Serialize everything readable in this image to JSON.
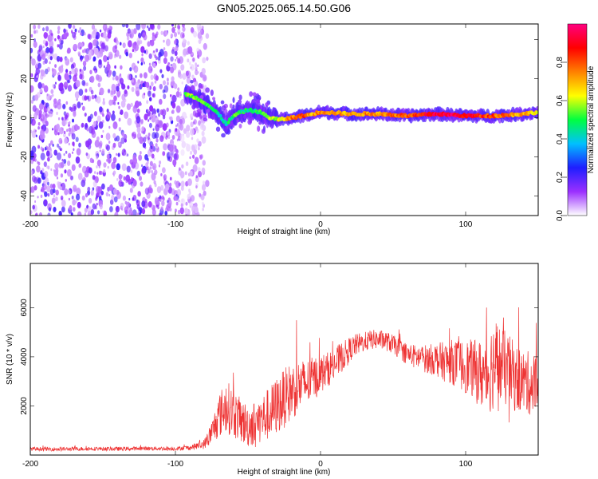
{
  "figure_title": "GN05.2025.065.14.50.G06",
  "chart_data": [
    {
      "type": "heatmap",
      "xlabel": "Height of straight line (km)",
      "ylabel": "Frequency (Hz)",
      "xlim": [
        -200,
        150
      ],
      "ylim": [
        -50,
        48
      ],
      "xticks": [
        -200,
        -100,
        0,
        100
      ],
      "yticks": [
        -40,
        -20,
        0,
        20,
        40
      ],
      "colorbar": {
        "label": "Normalized spectral amplitude",
        "range": [
          0.0,
          1.0
        ],
        "ticks": [
          "0.0",
          "0.2",
          "0.4",
          "0.6",
          "0.8"
        ],
        "colors": [
          "#ffffff",
          "#9b30ff",
          "#1e1eff",
          "#00c0ff",
          "#00ff40",
          "#ffff00",
          "#ff8000",
          "#ff0000",
          "#ff0080"
        ]
      },
      "noise_region_x": [
        -200,
        -82
      ],
      "ridge": {
        "x": [
          -93,
          -88,
          -80,
          -72,
          -65,
          -58,
          -50,
          -42,
          -35,
          -28,
          -20,
          -12,
          -5,
          0,
          20,
          40,
          60,
          80,
          100,
          120,
          140,
          150
        ],
        "freq": [
          12,
          11,
          8,
          3,
          -3,
          2,
          4,
          3,
          0,
          -1,
          0,
          1,
          2,
          3,
          2,
          2,
          1,
          2,
          1,
          1,
          2,
          3
        ],
        "amplitude": [
          0.5,
          0.55,
          0.5,
          0.45,
          0.45,
          0.5,
          0.45,
          0.5,
          0.55,
          0.6,
          0.75,
          0.8,
          0.7,
          0.75,
          0.7,
          0.75,
          0.8,
          0.95,
          0.9,
          0.8,
          0.7,
          0.6
        ]
      }
    },
    {
      "type": "line",
      "xlabel": "Height of straight line (km)",
      "ylabel": "SNR (10 * v/v)",
      "xlim": [
        -200,
        150
      ],
      "ylim": [
        0,
        7800
      ],
      "xticks": [
        -200,
        -100,
        0,
        100
      ],
      "yticks": [
        2000,
        4000,
        6000
      ],
      "color": "#ee3333",
      "series": [
        {
          "x": [
            -200,
            -180,
            -160,
            -140,
            -120,
            -100,
            -90,
            -80,
            -75,
            -70,
            -65,
            -60,
            -55,
            -50,
            -45,
            -40,
            -35,
            -30,
            -25,
            -20,
            -15,
            -10,
            -5,
            0,
            5,
            10,
            15,
            20,
            25,
            30,
            35,
            40,
            45,
            50,
            55,
            60,
            65,
            70,
            75,
            80,
            85,
            90,
            95,
            100,
            105,
            110,
            115,
            120,
            125,
            130,
            135,
            140,
            145,
            150
          ],
          "y": [
            250,
            240,
            260,
            250,
            270,
            260,
            300,
            450,
            900,
            1600,
            2000,
            1700,
            1400,
            1200,
            1300,
            1500,
            1700,
            2000,
            2300,
            2600,
            2800,
            2900,
            3100,
            3300,
            3500,
            3700,
            4000,
            4300,
            4500,
            4600,
            4700,
            4700,
            4650,
            4500,
            4300,
            4100,
            4000,
            3950,
            3900,
            3900,
            3800,
            3800,
            3700,
            3600,
            3500,
            3300,
            3300,
            3800,
            3600,
            3400,
            3100,
            3000,
            2900,
            2900
          ],
          "spread": [
            80,
            80,
            80,
            80,
            80,
            80,
            100,
            200,
            500,
            900,
            1100,
            1000,
            900,
            900,
            900,
            1000,
            1100,
            1200,
            1200,
            1200,
            1100,
            1000,
            900,
            800,
            700,
            700,
            600,
            500,
            450,
            400,
            400,
            400,
            400,
            400,
            400,
            450,
            500,
            550,
            600,
            700,
            800,
            900,
            1000,
            1100,
            1200,
            1400,
            1700,
            1900,
            1600,
            1500,
            1400,
            1300,
            1300,
            1300
          ]
        }
      ]
    }
  ]
}
